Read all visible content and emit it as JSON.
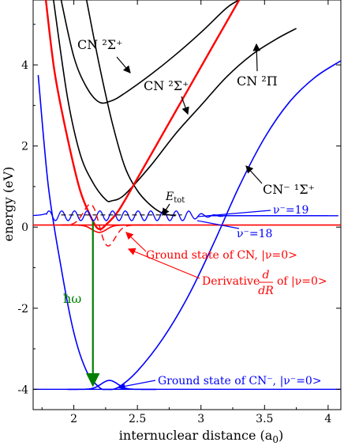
{
  "chart_data": {
    "type": "line",
    "xlabel": "internuclear distance (a0)",
    "ylabel": "energy (eV)",
    "xlim": [
      1.68,
      4.1
    ],
    "ylim": [
      -4.5,
      5.6
    ],
    "xticks": [
      "2",
      "2.5",
      "3",
      "3.5",
      "4"
    ],
    "yticks": [
      "-4",
      "-2",
      "0",
      "2",
      "4"
    ],
    "colors": {
      "black": "#000000",
      "red": "#ff0000",
      "blue": "#0000ff",
      "green": "#007f00"
    },
    "series": [
      {
        "id": "cn_sigma_upper",
        "color": "#000000",
        "points": [
          [
            1.9,
            5.6
          ],
          [
            2.0,
            4.2
          ],
          [
            2.1,
            3.45
          ],
          [
            2.2,
            3.08
          ],
          [
            2.3,
            3.12
          ],
          [
            2.4,
            3.3
          ],
          [
            2.6,
            3.75
          ],
          [
            2.8,
            4.25
          ],
          [
            3.0,
            4.8
          ],
          [
            3.2,
            5.4
          ],
          [
            3.3,
            5.6
          ]
        ]
      },
      {
        "id": "cn_sigma_lower",
        "color": "#000000",
        "points": [
          [
            1.84,
            5.6
          ],
          [
            1.95,
            3.2
          ],
          [
            2.05,
            1.8
          ],
          [
            2.15,
            1.1
          ],
          [
            2.25,
            0.68
          ],
          [
            2.3,
            0.65
          ],
          [
            2.4,
            0.8
          ],
          [
            2.6,
            1.5
          ],
          [
            2.8,
            2.3
          ],
          [
            3.0,
            3.0
          ],
          [
            3.2,
            3.7
          ],
          [
            3.4,
            4.25
          ],
          [
            3.6,
            4.65
          ],
          [
            3.75,
            4.9
          ]
        ]
      },
      {
        "id": "cn_pi",
        "color": "#000000",
        "points": [
          [
            2.1,
            5.6
          ],
          [
            2.2,
            4.0
          ],
          [
            2.3,
            2.6
          ],
          [
            2.4,
            1.5
          ],
          [
            2.5,
            0.9
          ],
          [
            2.6,
            0.55
          ],
          [
            2.7,
            0.34
          ],
          [
            2.8,
            0.28
          ]
        ]
      },
      {
        "id": "cn_ground",
        "color": "#ff0000",
        "points": [
          [
            1.78,
            5.6
          ],
          [
            1.85,
            3.8
          ],
          [
            1.95,
            2.2
          ],
          [
            2.05,
            0.9
          ],
          [
            2.15,
            0.15
          ],
          [
            2.2,
            -0.05
          ],
          [
            2.25,
            0.05
          ],
          [
            2.35,
            0.4
          ],
          [
            2.5,
            1.2
          ],
          [
            2.7,
            2.3
          ],
          [
            2.9,
            3.4
          ],
          [
            3.1,
            4.5
          ],
          [
            3.3,
            5.6
          ]
        ]
      },
      {
        "id": "cn_anion",
        "color": "#0000ff",
        "points": [
          [
            1.72,
            3.75
          ],
          [
            1.8,
            1.0
          ],
          [
            1.9,
            -1.0
          ],
          [
            2.0,
            -2.6
          ],
          [
            2.1,
            -3.55
          ],
          [
            2.2,
            -3.95
          ],
          [
            2.26,
            -4.0
          ],
          [
            2.35,
            -3.95
          ],
          [
            2.5,
            -3.55
          ],
          [
            2.7,
            -2.75
          ],
          [
            2.9,
            -1.7
          ],
          [
            3.1,
            -0.4
          ],
          [
            3.3,
            1.0
          ],
          [
            3.5,
            2.2
          ],
          [
            3.7,
            3.1
          ],
          [
            3.9,
            3.7
          ],
          [
            4.1,
            4.1
          ]
        ]
      },
      {
        "id": "cn_ground_level",
        "color": "#ff0000",
        "points": [
          [
            1.68,
            0.05
          ],
          [
            4.1,
            0.05
          ]
        ]
      }
    ],
    "annotations": {
      "cn_sigma_upper_label": "CN ²Σ⁺",
      "cn_sigma_lower_label": "CN ²Σ⁺",
      "cn_pi_label": "CN ²Π",
      "cn_anion_label": "CN⁻ ¹Σ⁺",
      "etot_label": "E_tot",
      "v19_label": "ν⁻=19",
      "v18_label": "ν⁻=18",
      "ground_cn_label": "Ground state of CN, |ν=0>",
      "derivative_label_pre": "Derivative",
      "derivative_frac_num": "d",
      "derivative_frac_den": "dR",
      "derivative_label_post": "of |ν=0>",
      "hbar_omega_label": "ħω",
      "ground_anion_label": "Ground state of CN⁻, |ν⁻=0>"
    }
  }
}
